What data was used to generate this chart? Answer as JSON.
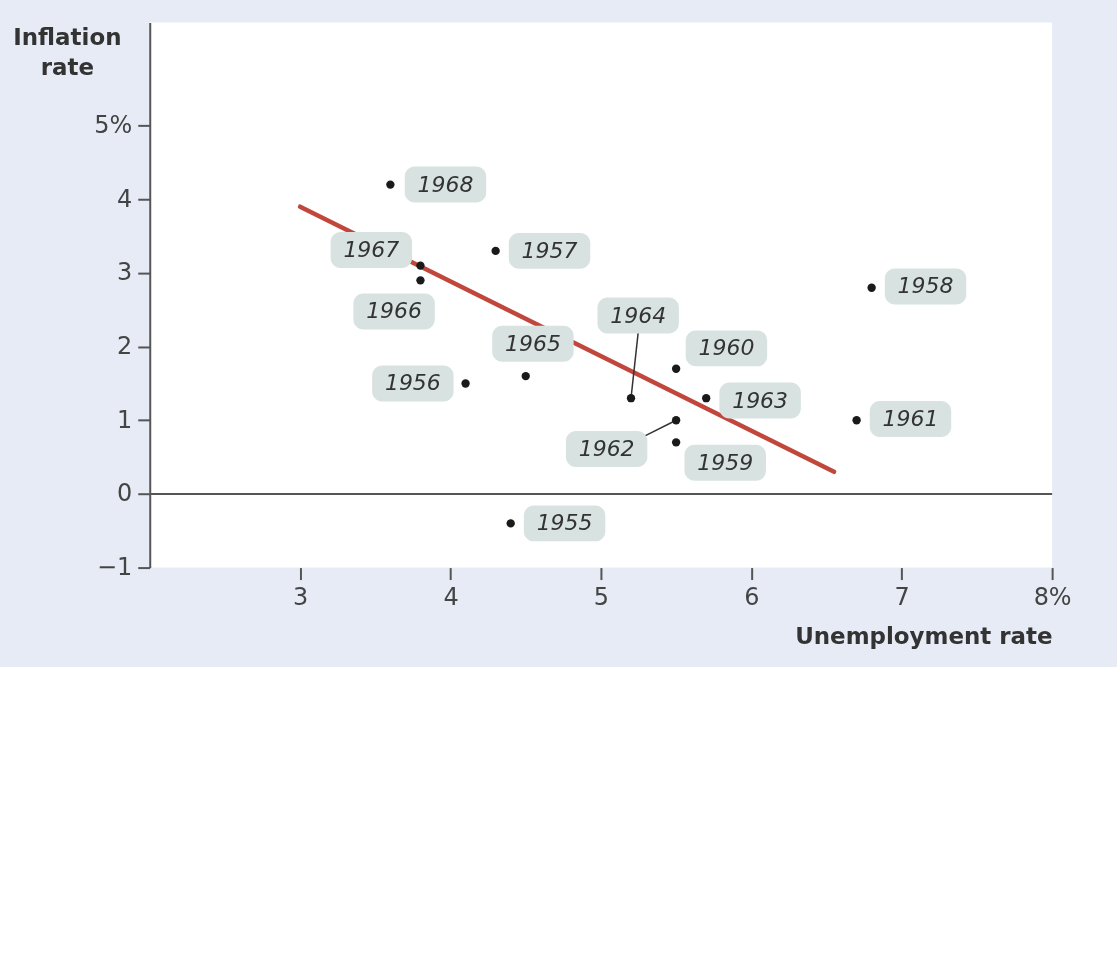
{
  "chart_data": {
    "type": "scatter",
    "xlabel": "Unemployment rate",
    "ylabel": "Inflation rate",
    "xlim": [
      2,
      8
    ],
    "ylim": [
      -1,
      6.4
    ],
    "xticks": [
      3,
      4,
      5,
      6,
      7,
      {
        "value": 8,
        "label": "8%"
      }
    ],
    "yticks": [
      -1,
      0,
      1,
      2,
      3,
      4,
      {
        "value": 5,
        "label": "5%"
      }
    ],
    "grid": false,
    "series": [
      {
        "marker": "circle",
        "color": "#1a1a1a",
        "x": [
          4.4,
          4.1,
          4.3,
          6.8,
          5.5,
          5.5,
          6.7,
          5.5,
          5.7,
          5.2,
          4.5,
          3.8,
          3.8,
          3.6
        ],
        "values": [
          -0.4,
          1.5,
          3.3,
          2.8,
          0.7,
          1.7,
          1.0,
          1.0,
          1.3,
          1.3,
          1.6,
          2.9,
          3.1,
          4.2
        ]
      },
      {
        "type": "line",
        "line_style": "solid",
        "color": "#c1473c",
        "x": [
          3.0,
          6.55
        ],
        "values": [
          3.9,
          0.3
        ]
      }
    ],
    "ref_lines": [
      {
        "axis": "y",
        "value": 0,
        "color": "#555555"
      }
    ],
    "annotations": [
      {
        "text": "1955",
        "x": 4.4,
        "y": -0.4
      },
      {
        "text": "1956",
        "x": 4.1,
        "y": 1.5
      },
      {
        "text": "1957",
        "x": 4.3,
        "y": 3.3
      },
      {
        "text": "1958",
        "x": 6.8,
        "y": 2.8
      },
      {
        "text": "1959",
        "x": 5.5,
        "y": 0.7
      },
      {
        "text": "1960",
        "x": 5.5,
        "y": 1.7
      },
      {
        "text": "1961",
        "x": 6.7,
        "y": 1.0
      },
      {
        "text": "1962",
        "x": 5.5,
        "y": 1.0
      },
      {
        "text": "1963",
        "x": 5.7,
        "y": 1.3
      },
      {
        "text": "1964",
        "x": 5.2,
        "y": 1.3
      },
      {
        "text": "1965",
        "x": 4.5,
        "y": 1.6
      },
      {
        "text": "1966",
        "x": 3.8,
        "y": 2.9
      },
      {
        "text": "1967",
        "x": 3.8,
        "y": 3.1
      },
      {
        "text": "1968",
        "x": 3.6,
        "y": 4.2
      }
    ]
  }
}
